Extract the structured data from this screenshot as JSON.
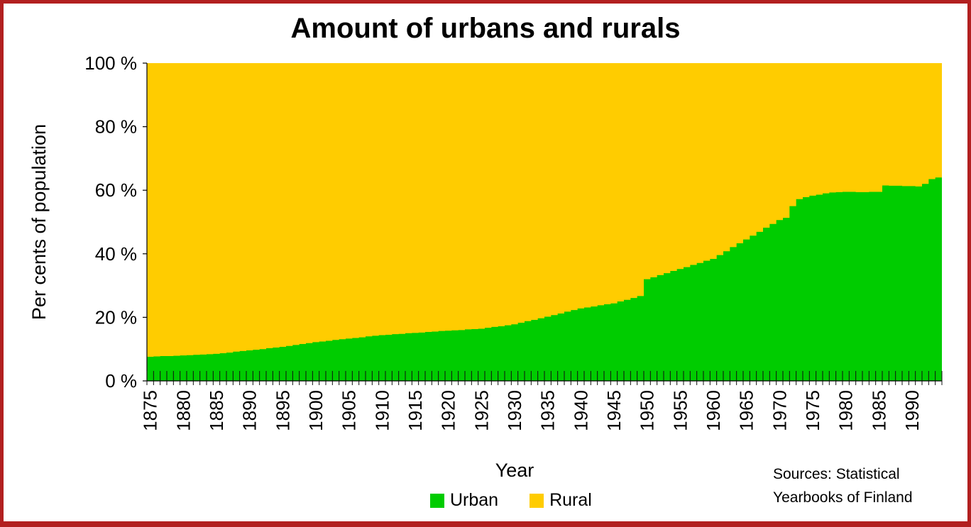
{
  "chart_data": {
    "type": "area",
    "title": "Amount of urbans and rurals",
    "xlabel": "Year",
    "ylabel": "Per cents of population",
    "xlim": [
      1875,
      1994
    ],
    "ylim": [
      0,
      100
    ],
    "y_ticks": [
      "0 %",
      "20 %",
      "40 %",
      "60 %",
      "80 %",
      "100 %"
    ],
    "x_tick_labels": [
      "1875",
      "1880",
      "1885",
      "1890",
      "1895",
      "1900",
      "1905",
      "1910",
      "1915",
      "1920",
      "1925",
      "1930",
      "1935",
      "1940",
      "1945",
      "1950",
      "1955",
      "1960",
      "1965",
      "1970",
      "1975",
      "1980",
      "1985",
      "1990"
    ],
    "stacked": true,
    "percent_stacked": true,
    "legend_position": "bottom",
    "series": [
      {
        "name": "Urban",
        "color": "#00cc00",
        "points": [
          [
            1875,
            7.6
          ],
          [
            1880,
            8.0
          ],
          [
            1885,
            8.5
          ],
          [
            1890,
            9.6
          ],
          [
            1895,
            10.7
          ],
          [
            1900,
            12.2
          ],
          [
            1905,
            13.3
          ],
          [
            1910,
            14.4
          ],
          [
            1915,
            15.1
          ],
          [
            1920,
            15.8
          ],
          [
            1925,
            16.4
          ],
          [
            1930,
            17.8
          ],
          [
            1935,
            20.2
          ],
          [
            1940,
            22.8
          ],
          [
            1945,
            24.4
          ],
          [
            1949,
            26.7
          ],
          [
            1950,
            32.0
          ],
          [
            1955,
            35.2
          ],
          [
            1960,
            38.4
          ],
          [
            1965,
            44.5
          ],
          [
            1970,
            50.6
          ],
          [
            1971,
            51.3
          ],
          [
            1972,
            55.0
          ],
          [
            1973,
            57.2
          ],
          [
            1975,
            58.3
          ],
          [
            1978,
            59.3
          ],
          [
            1980,
            59.5
          ],
          [
            1983,
            59.4
          ],
          [
            1985,
            59.5
          ],
          [
            1986,
            61.5
          ],
          [
            1989,
            61.3
          ],
          [
            1991,
            61.2
          ],
          [
            1992,
            62.0
          ],
          [
            1993,
            63.5
          ],
          [
            1994,
            64.0
          ]
        ]
      },
      {
        "name": "Rural",
        "color": "#ffcc00",
        "complement_of": "Urban"
      }
    ]
  },
  "annotation": {
    "line1": "Sources: Statistical",
    "line2": "Yearbooks of Finland"
  }
}
